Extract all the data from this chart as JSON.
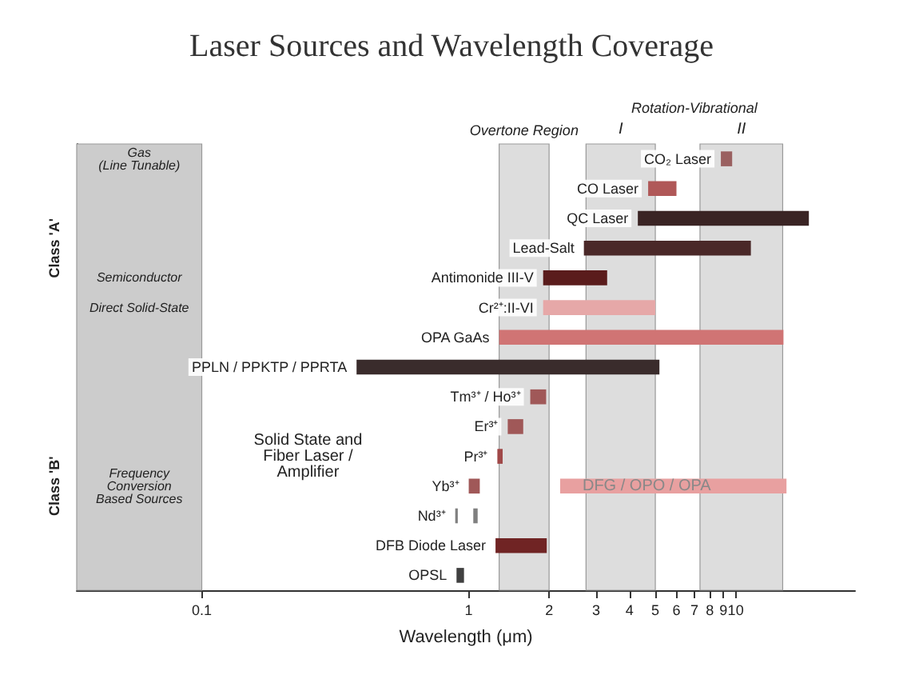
{
  "chart_data": {
    "type": "bar",
    "orientation": "horizontal",
    "title": "Laser Sources and Wavelength Coverage",
    "xlabel": "Wavelength (μm)",
    "log": "x",
    "xlim": [
      0.034,
      28
    ],
    "xticks": [
      0.1,
      1,
      2,
      3,
      4,
      5,
      6,
      7,
      8,
      9,
      10
    ],
    "grid": false,
    "categories": [
      "CO₂ Laser",
      "CO Laser",
      "QC Laser",
      "Lead-Salt",
      "Antimonide III-V",
      "Cr²⁺:II-VI",
      "OPA GaAs",
      "PPLN / PPKTP / PPRTA",
      "Tm³⁺ / Ho³⁺",
      "Er³⁺",
      "Pr³⁺",
      "Yb³⁺",
      "Nd³⁺",
      "DFB Diode Laser",
      "OPSL"
    ],
    "series": [
      {
        "base": [
          8.8,
          4.7,
          4.3,
          2.7,
          1.9,
          1.9,
          1.3,
          0.38,
          1.7,
          1.4,
          1.28,
          1.0,
          0.89,
          1.26,
          0.9
        ],
        "values": [
          0.9,
          1.3,
          14.5,
          8.7,
          1.4,
          3.1,
          13.8,
          4.8,
          0.25,
          0.2,
          0.06,
          0.1,
          0.02,
          0.7,
          0.06
        ],
        "colors": [
          "#9a6060",
          "#b05858",
          "#3a2424",
          "#4a2828",
          "#5a1c1c",
          "#e6a8a8",
          "#d07474",
          "#3a2c2c",
          "#a05858",
          "#a05858",
          "#a04848",
          "#a05858",
          "#808080",
          "#702424",
          "#404040"
        ]
      },
      {
        "base": [
          null,
          null,
          null,
          null,
          null,
          null,
          null,
          null,
          null,
          null,
          null,
          2.2,
          1.04,
          null,
          null
        ],
        "values": [
          null,
          null,
          null,
          null,
          null,
          null,
          null,
          null,
          null,
          null,
          null,
          13.3,
          0.04,
          null,
          null
        ],
        "colors": [
          null,
          null,
          null,
          null,
          null,
          null,
          null,
          null,
          null,
          null,
          null,
          "#e8a0a0",
          "#808080",
          null,
          null
        ]
      }
    ],
    "bands": [
      {
        "axis": "x",
        "from": 0.034,
        "to": 0.1,
        "color": "#cccccc"
      },
      {
        "axis": "x",
        "from": 1.3,
        "to": 2.0,
        "label": "Overtone Region",
        "color": "#dddddd"
      },
      {
        "axis": "x",
        "from": 2.75,
        "to": 5.0,
        "label": "I",
        "color": "#dddddd"
      },
      {
        "axis": "x",
        "from": 7.35,
        "to": 15,
        "label": "II",
        "color": "#dddddd"
      }
    ],
    "annotations": [
      "Rotation-Vibrational",
      "Gas\n(Line Tunable)",
      "Semiconductor",
      "Direct Solid-State",
      "Frequency\nConversion\nBased Sources",
      "Class 'A'",
      "Class 'B'",
      "Solid State and\nFiber Laser /\nAmplifier",
      {
        "text": "DFG / OPO / OPA",
        "x": 2.2,
        "y": "Yb³⁺"
      }
    ]
  }
}
